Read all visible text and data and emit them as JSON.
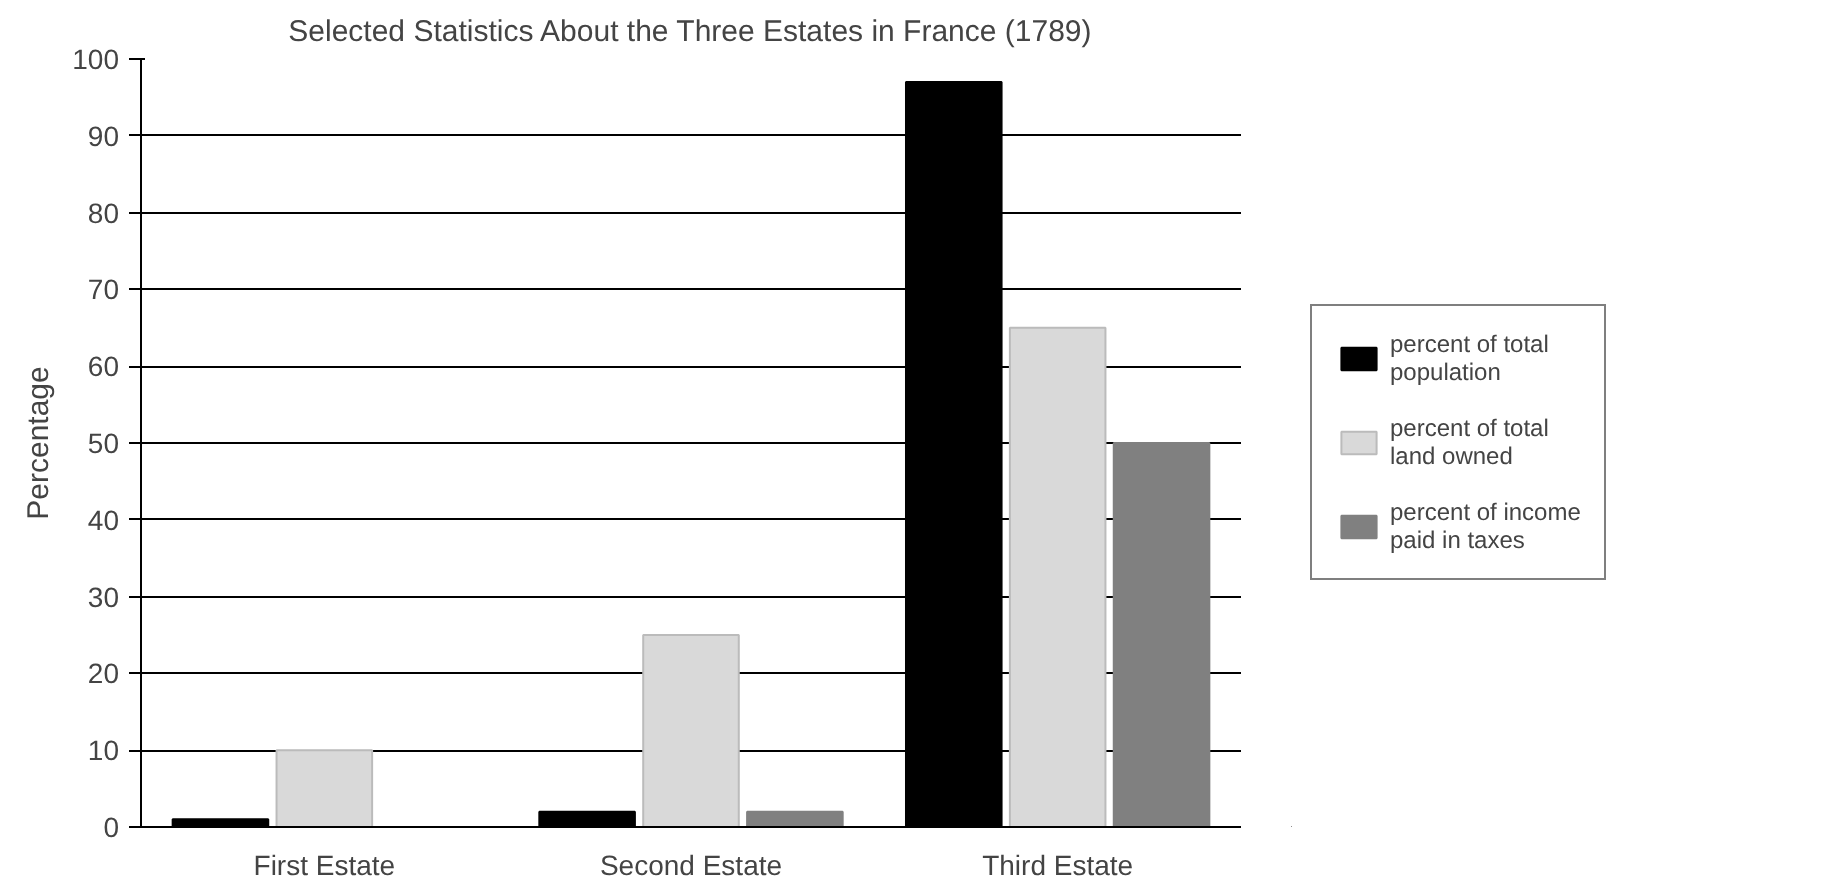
{
  "chart_data": {
    "type": "bar",
    "title": "Selected Statistics About the Three Estates in France (1789)",
    "ylabel": "Percentage",
    "categories": [
      "First Estate",
      "Second Estate",
      "Third Estate"
    ],
    "series": [
      {
        "name": "percent of total population",
        "color": "#000000",
        "values": [
          1,
          2,
          97
        ]
      },
      {
        "name": "percent of total land owned",
        "color": "#d9d9d9",
        "values": [
          10,
          25,
          65
        ]
      },
      {
        "name": "percent of income paid in taxes",
        "color": "#808080",
        "values": [
          0,
          2,
          50
        ]
      }
    ],
    "ylim": [
      0,
      100
    ],
    "yticks": [
      0,
      10,
      20,
      30,
      40,
      50,
      60,
      70,
      80,
      90,
      100
    ],
    "grid": "y",
    "legend": "right"
  }
}
